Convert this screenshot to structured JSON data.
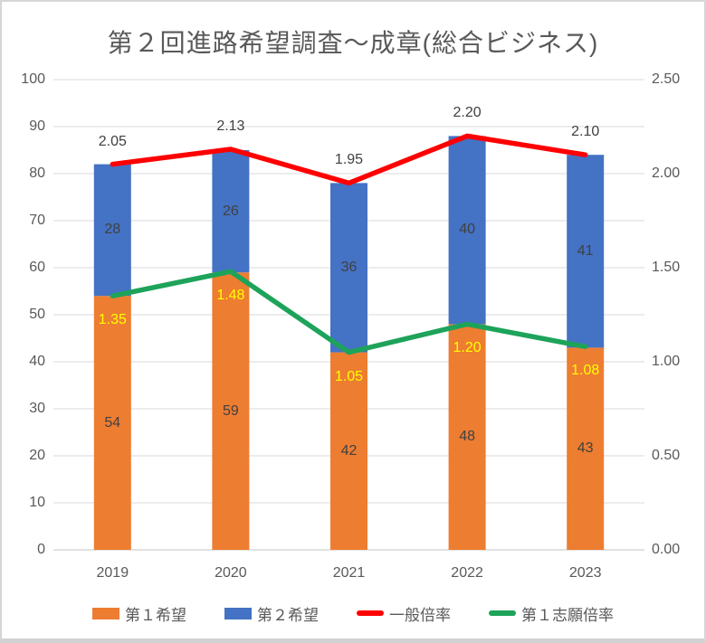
{
  "frame": {
    "background": "#FFFFFF",
    "border_color": "#D6D6D6"
  },
  "chart_data": {
    "type": "combo_stacked_bar_line",
    "title": "第２回進路希望調査～成章(総合ビジネス)",
    "title_color": "#595959",
    "categories": [
      "2019",
      "2020",
      "2021",
      "2022",
      "2023"
    ],
    "left_axis": {
      "min": 0,
      "max": 100,
      "step": 10,
      "tick_labels": [
        "100",
        "90",
        "80",
        "70",
        "60",
        "50",
        "40",
        "30",
        "20",
        "10",
        "0"
      ]
    },
    "right_axis": {
      "min": 0,
      "max": 2.5,
      "step": 0.5,
      "tick_labels": [
        "2.50",
        "2.00",
        "1.50",
        "1.00",
        "0.50",
        "0.00"
      ]
    },
    "grid": true,
    "gridline_color": "#D9D9D9",
    "axis_line_color": "#C6C6C6",
    "tick_label_color": "#595959",
    "legend_position": "bottom",
    "bar_series": [
      {
        "name": "第１希望",
        "type": "bar",
        "axis": "left",
        "color": "#ED7D31",
        "label_color": "#404040",
        "values": [
          54,
          59,
          42,
          48,
          43
        ]
      },
      {
        "name": "第２希望",
        "type": "bar",
        "axis": "left",
        "color": "#4472C4",
        "label_color": "#404040",
        "values": [
          28,
          26,
          36,
          40,
          41
        ]
      }
    ],
    "line_series": [
      {
        "name": "一般倍率",
        "type": "line",
        "axis": "right",
        "color": "#FF0000",
        "label_color": "#404040",
        "label_position": "above",
        "values": [
          2.05,
          2.13,
          1.95,
          2.2,
          2.1
        ],
        "labels": [
          "2.05",
          "2.13",
          "1.95",
          "2.20",
          "2.10"
        ]
      },
      {
        "name": "第１志願倍率",
        "type": "line",
        "axis": "right",
        "color": "#1DA35A",
        "label_color": "#FFFF00",
        "label_position": "below",
        "values": [
          1.35,
          1.48,
          1.05,
          1.2,
          1.08
        ],
        "labels": [
          "1.35",
          "1.48",
          "1.05",
          "1.20",
          "1.08"
        ]
      }
    ]
  }
}
